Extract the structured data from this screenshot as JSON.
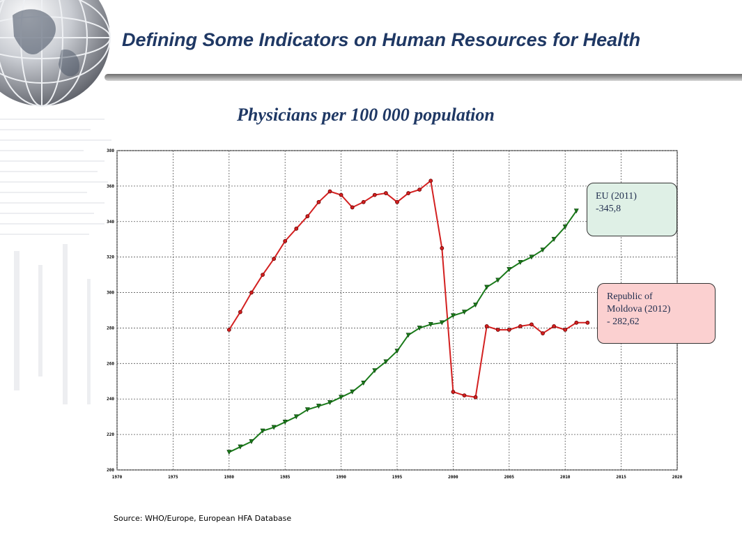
{
  "header": {
    "title": "Defining  Some Indicators on Human Resources for Health"
  },
  "source_note": "Source: WHO/Europe, European HFA Database",
  "colors": {
    "title": "#1f3864",
    "moldova_series": "#d32020",
    "eu_series": "#1a7a1a",
    "eu_callout_bg": "#dff0e6",
    "moldova_callout_bg": "#fbd0d0"
  },
  "callouts": {
    "eu": {
      "line1": "EU (2011)",
      "line2": "-345,8"
    },
    "moldova": {
      "line1": "Republic of",
      "line2": "Moldova (2012)",
      "line3": "- 282,62"
    }
  },
  "chart_data": {
    "type": "line",
    "title": "Physicians per 100 000 population",
    "xlabel": "",
    "ylabel": "",
    "xlim": [
      1970,
      2020
    ],
    "ylim": [
      200,
      380
    ],
    "x_ticks": [
      1970,
      1975,
      1980,
      1985,
      1990,
      1995,
      2000,
      2005,
      2010,
      2015,
      2020
    ],
    "y_ticks": [
      200,
      220,
      240,
      260,
      280,
      300,
      320,
      340,
      360,
      380
    ],
    "grid": true,
    "series": [
      {
        "name": "Republic of Moldova",
        "color": "#d32020",
        "marker": "circle",
        "x": [
          1980,
          1981,
          1982,
          1983,
          1984,
          1985,
          1986,
          1987,
          1988,
          1989,
          1990,
          1991,
          1992,
          1993,
          1994,
          1995,
          1996,
          1997,
          1998,
          1999,
          2000,
          2001,
          2002,
          2003,
          2004,
          2005,
          2006,
          2007,
          2008,
          2009,
          2010,
          2011,
          2012
        ],
        "y": [
          279,
          289,
          300,
          310,
          319,
          329,
          336,
          343,
          351,
          357,
          355,
          348,
          351,
          355,
          356,
          351,
          356,
          358,
          363,
          325,
          244,
          242,
          241,
          281,
          279,
          279,
          281,
          282,
          277,
          281,
          279,
          283,
          283
        ]
      },
      {
        "name": "EU",
        "color": "#1a7a1a",
        "marker": "triangle-down",
        "x": [
          1980,
          1981,
          1982,
          1983,
          1984,
          1985,
          1986,
          1987,
          1988,
          1989,
          1990,
          1991,
          1992,
          1993,
          1994,
          1995,
          1996,
          1997,
          1998,
          1999,
          2000,
          2001,
          2002,
          2003,
          2004,
          2005,
          2006,
          2007,
          2008,
          2009,
          2010,
          2011
        ],
        "y": [
          210,
          213,
          216,
          222,
          224,
          227,
          230,
          234,
          236,
          238,
          241,
          244,
          249,
          256,
          261,
          267,
          276,
          280,
          282,
          283,
          287,
          289,
          293,
          303,
          307,
          313,
          317,
          320,
          324,
          330,
          337,
          346
        ]
      }
    ]
  }
}
